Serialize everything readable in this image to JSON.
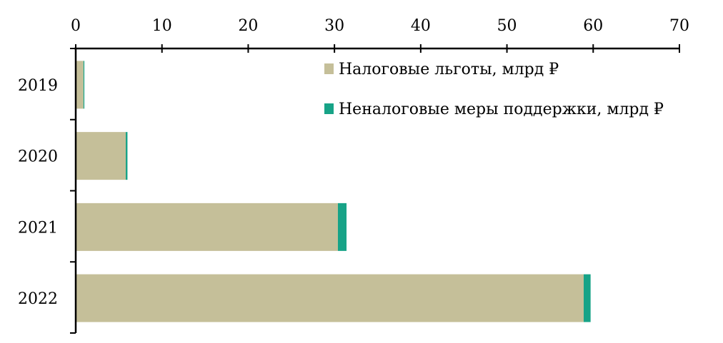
{
  "chart_data": {
    "type": "bar",
    "orientation": "horizontal",
    "stacked": true,
    "title": "",
    "xlabel": "",
    "ylabel": "",
    "x_axis_position": "top",
    "xlim": [
      0,
      70
    ],
    "x_ticks": [
      0,
      10,
      20,
      30,
      40,
      50,
      60,
      70
    ],
    "categories": [
      "2019",
      "2020",
      "2021",
      "2022"
    ],
    "series": [
      {
        "name": "Налоговые льготы, млрд ₽",
        "color": "#c5bf99",
        "values": [
          0.9,
          5.8,
          30.4,
          58.9
        ]
      },
      {
        "name": "Неналоговые меры поддержки, млрд ₽",
        "color": "#17a387",
        "values": [
          0.1,
          0.2,
          1.0,
          0.8
        ]
      }
    ],
    "legend": "top-right",
    "grid": false
  }
}
